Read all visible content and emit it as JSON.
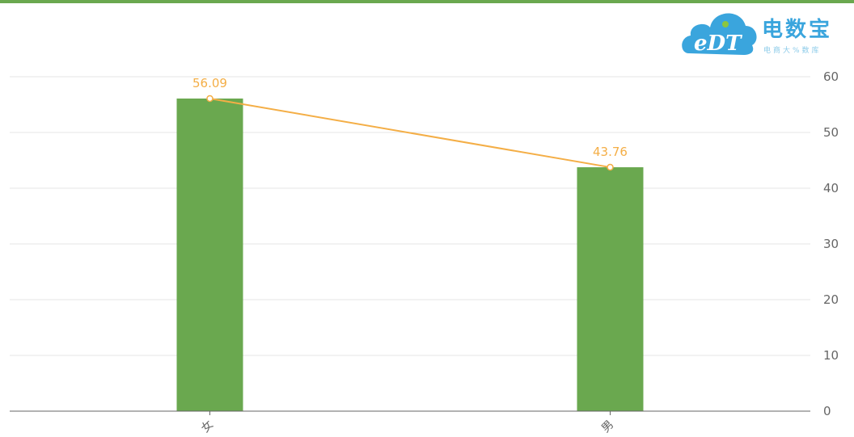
{
  "colors": {
    "top_bar": "#6aa84f",
    "bar": "#6aa84f",
    "line": "#f4ae46",
    "grid": "#e6e6e6",
    "axis": "#666666",
    "logo_blue": "#3aa5dd",
    "logo_green": "#8cc63f"
  },
  "logo": {
    "icon": "edt-cloud-logo",
    "cloud_text": "eDT",
    "brand": "电数宝",
    "sub": "电商大%数库"
  },
  "chart_data": {
    "type": "bar",
    "categories": [
      "女",
      "男"
    ],
    "values": [
      56.09,
      43.76
    ],
    "line_overlay": true,
    "data_labels": [
      "56.09",
      "43.76"
    ],
    "title": "",
    "xlabel": "",
    "ylabel": "",
    "ylim": [
      0,
      60
    ],
    "yticks": [
      0,
      10,
      20,
      30,
      40,
      50,
      60
    ],
    "y_axis_side": "right",
    "grid": true,
    "legend": "none"
  }
}
